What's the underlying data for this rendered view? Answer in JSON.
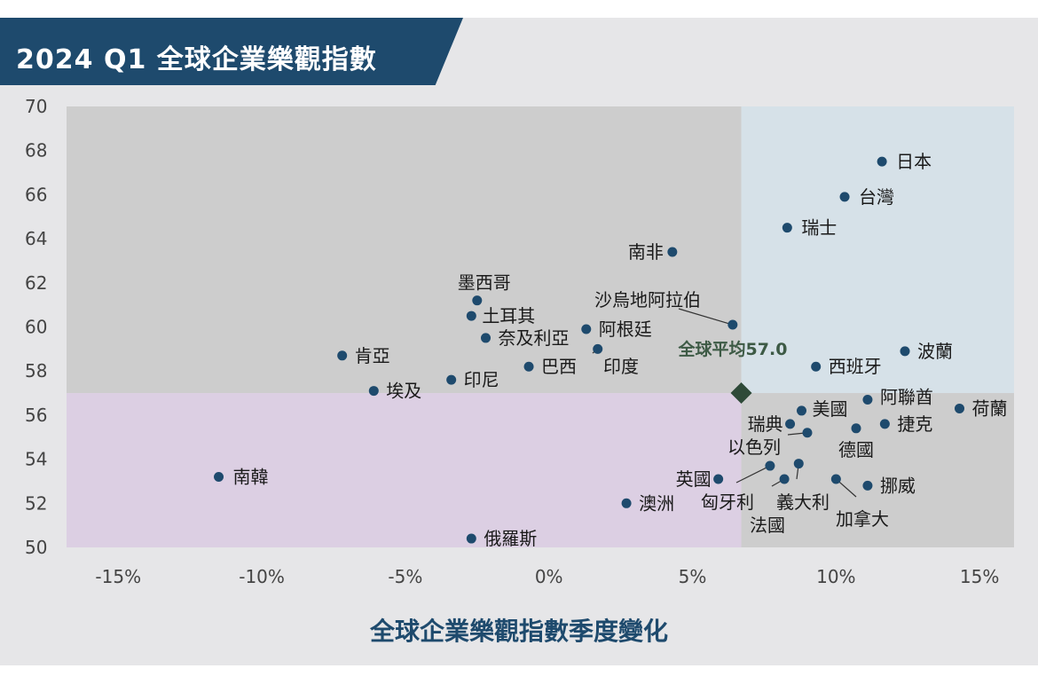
{
  "chart_data": {
    "type": "scatter",
    "title": "2024 Q1 全球企業樂觀指數",
    "xlabel": "全球企業樂觀指數季度變化",
    "ylabel": "",
    "xlim": [
      -16.8,
      16.2
    ],
    "ylim": [
      50,
      70
    ],
    "x_ticks": [
      "-15%",
      "-10%",
      "-5%",
      "0%",
      "5%",
      "10%",
      "15%"
    ],
    "x_tick_values": [
      -15,
      -10,
      -5,
      0,
      5,
      10,
      15
    ],
    "y_ticks": [
      70,
      68,
      66,
      64,
      62,
      60,
      58,
      56,
      54,
      52,
      50
    ],
    "grid": false,
    "average": {
      "label": "全球平均57.0",
      "x": 6.7,
      "y": 57.0
    },
    "points": [
      {
        "name": "日本",
        "x": 11.6,
        "y": 67.5
      },
      {
        "name": "台灣",
        "x": 10.3,
        "y": 65.9
      },
      {
        "name": "瑞士",
        "x": 8.3,
        "y": 64.5
      },
      {
        "name": "南非",
        "x": 4.3,
        "y": 63.4
      },
      {
        "name": "墨西哥",
        "x": -2.5,
        "y": 61.2
      },
      {
        "name": "沙烏地阿拉伯",
        "x": 6.4,
        "y": 60.1
      },
      {
        "name": "土耳其",
        "x": -2.7,
        "y": 60.5
      },
      {
        "name": "奈及利亞",
        "x": -2.2,
        "y": 59.5
      },
      {
        "name": "阿根廷",
        "x": 1.3,
        "y": 59.9
      },
      {
        "name": "印度",
        "x": 1.7,
        "y": 59.0
      },
      {
        "name": "波蘭",
        "x": 12.4,
        "y": 58.9
      },
      {
        "name": "肯亞",
        "x": -7.2,
        "y": 58.7
      },
      {
        "name": "巴西",
        "x": -0.7,
        "y": 58.2
      },
      {
        "name": "西班牙",
        "x": 9.3,
        "y": 58.2
      },
      {
        "name": "印尼",
        "x": -3.4,
        "y": 57.6
      },
      {
        "name": "埃及",
        "x": -6.1,
        "y": 57.1
      },
      {
        "name": "阿聯酋",
        "x": 11.1,
        "y": 56.7
      },
      {
        "name": "荷蘭",
        "x": 14.3,
        "y": 56.3
      },
      {
        "name": "美國",
        "x": 8.8,
        "y": 56.2
      },
      {
        "name": "瑞典",
        "x": 8.4,
        "y": 55.6
      },
      {
        "name": "捷克",
        "x": 11.7,
        "y": 55.6
      },
      {
        "name": "德國",
        "x": 10.7,
        "y": 55.4
      },
      {
        "name": "以色列",
        "x": 9.0,
        "y": 55.2
      },
      {
        "name": "南韓",
        "x": -11.5,
        "y": 53.2
      },
      {
        "name": "英國",
        "x": 5.9,
        "y": 53.1
      },
      {
        "name": "匈牙利",
        "x": 7.7,
        "y": 53.7
      },
      {
        "name": "義大利",
        "x": 8.7,
        "y": 53.8
      },
      {
        "name": "法國",
        "x": 8.2,
        "y": 53.1
      },
      {
        "name": "加拿大",
        "x": 10.0,
        "y": 53.1
      },
      {
        "name": "挪威",
        "x": 11.1,
        "y": 52.8
      },
      {
        "name": "澳洲",
        "x": 2.7,
        "y": 52.0
      },
      {
        "name": "俄羅斯",
        "x": -2.7,
        "y": 50.4
      }
    ]
  },
  "colors": {
    "banner": "#1e4a6d",
    "point": "#1e4a6d",
    "average_marker": "#2e4a38",
    "average_label": "#3d5a45",
    "q_top_left": "#cdcdcd",
    "q_top_right": "#d6e1e8",
    "q_bottom_left": "#dccfe3",
    "q_bottom_right": "#cdcdcd",
    "axis_label": "#1e4a6d"
  }
}
